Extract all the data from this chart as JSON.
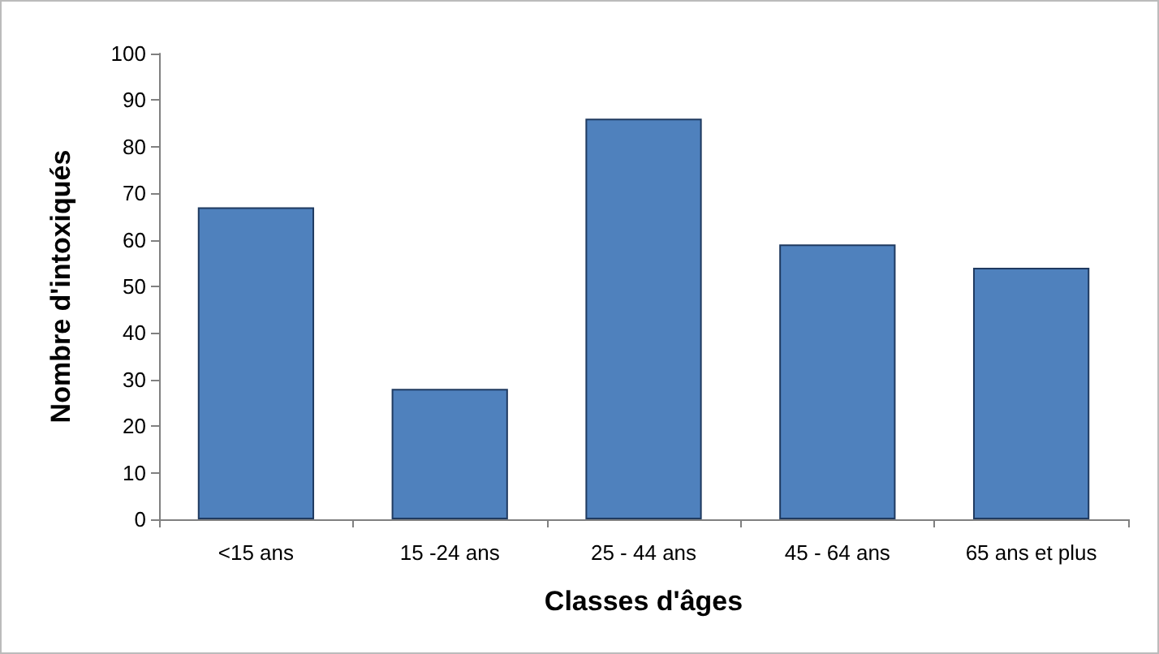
{
  "chart_data": {
    "type": "bar",
    "xlabel": "Classes d'âges",
    "ylabel": "Nombre d'intoxiqués",
    "categories": [
      "<15 ans",
      "15 -24 ans",
      "25 - 44 ans",
      "45 - 64 ans",
      "65 ans et plus"
    ],
    "values": [
      67,
      28,
      86,
      59,
      54
    ],
    "color": "#4f81bd",
    "ylim": [
      0,
      100
    ],
    "yticks": [
      0,
      10,
      20,
      30,
      40,
      50,
      60,
      70,
      80,
      90,
      100
    ],
    "grid": false
  }
}
